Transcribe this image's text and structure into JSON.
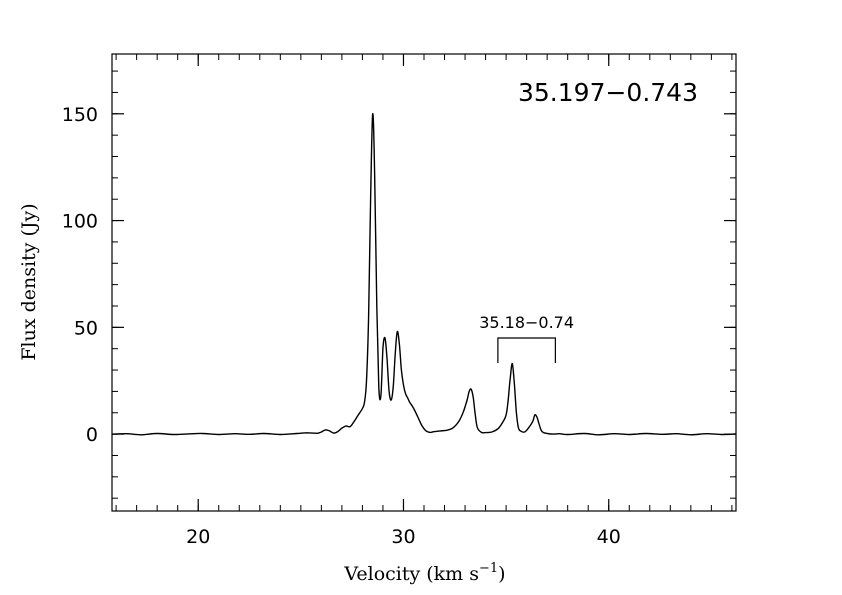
{
  "chart_data": {
    "type": "line",
    "title": "35.197−0.743",
    "xlabel": "Velocity (km s",
    "xlabel_sup": "−1",
    "xlabel_close": ")",
    "ylabel": "Flux density (Jy)",
    "xlim": [
      15.8,
      46.2
    ],
    "ylim": [
      -36,
      178
    ],
    "x_ticks": [
      20,
      30,
      40
    ],
    "x_tick_labels": [
      "20",
      "30",
      "40"
    ],
    "y_ticks": [
      0,
      50,
      100,
      150
    ],
    "y_tick_labels": [
      "0",
      "50",
      "100",
      "150"
    ],
    "grid": false,
    "annotations": [
      {
        "text": "35.18−0.74",
        "x_range": [
          34.6,
          37.4
        ],
        "y": 45
      }
    ],
    "series": [
      {
        "x": [
          15.8,
          16.5,
          17.2,
          18.0,
          18.8,
          19.5,
          20.2,
          21.0,
          21.8,
          22.5,
          23.2,
          24.0,
          24.8,
          25.3,
          25.8,
          26.0,
          26.2,
          26.4,
          26.6,
          26.8,
          27.0,
          27.2,
          27.4,
          27.6,
          27.8,
          28.0,
          28.1,
          28.2,
          28.3,
          28.4,
          28.5,
          28.6,
          28.7,
          28.8,
          28.9,
          29.0,
          29.1,
          29.2,
          29.3,
          29.4,
          29.5,
          29.6,
          29.7,
          29.8,
          29.9,
          30.0,
          30.1,
          30.2,
          30.3,
          30.5,
          30.7,
          30.9,
          31.1,
          31.3,
          31.5,
          31.8,
          32.1,
          32.4,
          32.7,
          32.9,
          33.1,
          33.2,
          33.3,
          33.4,
          33.5,
          33.6,
          33.8,
          34.0,
          34.3,
          34.6,
          34.8,
          35.0,
          35.1,
          35.2,
          35.3,
          35.4,
          35.5,
          35.6,
          35.7,
          35.9,
          36.1,
          36.3,
          36.4,
          36.5,
          36.6,
          36.7,
          36.8,
          37.0,
          37.3,
          37.6,
          38.0,
          38.8,
          39.5,
          40.3,
          41.0,
          41.8,
          42.6,
          43.3,
          44.0,
          44.8,
          45.5,
          46.2
        ],
        "y": [
          0,
          0.2,
          -0.3,
          0.3,
          -0.2,
          0.1,
          0.3,
          -0.2,
          0.2,
          -0.1,
          0.3,
          -0.2,
          0.3,
          0.6,
          0.4,
          1.0,
          2.0,
          1.5,
          0.5,
          1.2,
          2.8,
          3.8,
          3.5,
          6,
          9,
          12,
          15,
          25,
          55,
          110,
          150,
          120,
          60,
          22,
          18,
          40,
          45,
          35,
          20,
          16,
          22,
          38,
          48,
          42,
          30,
          23,
          19,
          17,
          15,
          12,
          8,
          4,
          1.5,
          0.8,
          1.2,
          1.5,
          1.8,
          2.8,
          6,
          10,
          16,
          20,
          21,
          17,
          9,
          3,
          0.8,
          0.7,
          1.0,
          2.5,
          5,
          9,
          16,
          26,
          33,
          24,
          10,
          3,
          1.5,
          1.0,
          3,
          6,
          9,
          8,
          5,
          2,
          0.8,
          0.3,
          0,
          0.2,
          -0.2,
          0.3,
          -0.3,
          0.2,
          -0.2,
          0.3,
          -0.1,
          0.2,
          -0.3,
          0.2,
          -0.2,
          0.1
        ]
      }
    ]
  }
}
